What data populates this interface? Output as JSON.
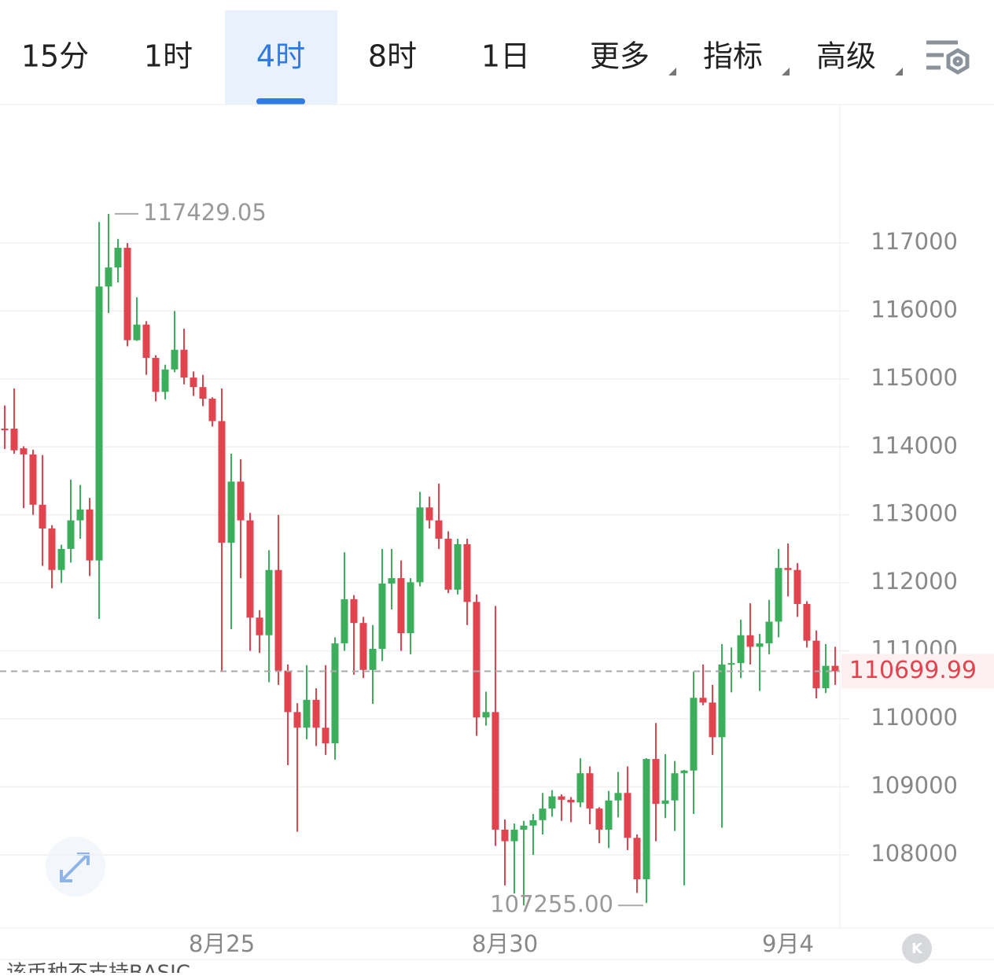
{
  "tabs": [
    "15分",
    "1时",
    "4时",
    "8时",
    "1日",
    "更多",
    "指标",
    "高级"
  ],
  "active_tab": 2,
  "footer": "该币种不支持BASIC",
  "chart_data": {
    "type": "candlestick",
    "categories": [
      null,
      null,
      null,
      null,
      null,
      null,
      null,
      null,
      null,
      null,
      null,
      null,
      null,
      null,
      null,
      null,
      null,
      null,
      null,
      null,
      null,
      null,
      null,
      "8月25",
      null,
      null,
      null,
      null,
      null,
      null,
      null,
      null,
      null,
      null,
      null,
      null,
      null,
      null,
      null,
      null,
      null,
      null,
      null,
      null,
      null,
      null,
      null,
      null,
      null,
      null,
      null,
      null,
      null,
      "8月30",
      null,
      null,
      null,
      null,
      null,
      null,
      null,
      null,
      null,
      null,
      null,
      null,
      null,
      null,
      null,
      null,
      null,
      null,
      null,
      null,
      null,
      null,
      null,
      null,
      null,
      null,
      null,
      null,
      null,
      "9月4",
      null,
      null,
      null,
      null,
      null
    ],
    "open": [
      114270,
      114270,
      113980,
      113890,
      113150,
      112800,
      112190,
      112500,
      112920,
      113080,
      112330,
      116360,
      116640,
      116930,
      115570,
      115800,
      115310,
      114810,
      115140,
      115430,
      115020,
      114880,
      114710,
      114380,
      112590,
      113490,
      112920,
      111490,
      111230,
      112190,
      110710,
      110100,
      109870,
      110280,
      109870,
      109640,
      111110,
      111760,
      111410,
      110720,
      111030,
      111990,
      112070,
      111260,
      112010,
      113110,
      112920,
      112650,
      111900,
      112570,
      111720,
      110020,
      110100,
      108370,
      108200,
      108370,
      108430,
      108510,
      108680,
      108860,
      108810,
      108770,
      109200,
      108680,
      108370,
      108800,
      108910,
      108250,
      107640,
      109410,
      108750,
      108800,
      109200,
      109240,
      110310,
      110240,
      109730,
      110800,
      110820,
      111230,
      111060,
      111110,
      111430,
      112220,
      112190,
      111690,
      111150,
      110450,
      110780
    ],
    "high": [
      114610,
      114860,
      114010,
      113960,
      113880,
      112850,
      112560,
      113520,
      113440,
      113250,
      117310,
      117429.05,
      117060,
      117000,
      116200,
      115850,
      115350,
      115210,
      116000,
      115740,
      115110,
      115060,
      114730,
      114860,
      113900,
      113820,
      113030,
      111600,
      112480,
      113000,
      110800,
      110230,
      110790,
      110450,
      110790,
      111200,
      112450,
      111820,
      111500,
      111380,
      112500,
      112500,
      112330,
      112070,
      113340,
      113270,
      113460,
      112760,
      112650,
      112650,
      111830,
      110400,
      111660,
      108520,
      108460,
      108500,
      108600,
      108910,
      108950,
      108890,
      108850,
      109420,
      109300,
      108700,
      108940,
      109220,
      109300,
      108300,
      109420,
      109940,
      109480,
      109380,
      109250,
      110690,
      110800,
      110500,
      111100,
      111050,
      111460,
      111700,
      111250,
      111750,
      112500,
      112580,
      112290,
      111730,
      111300,
      111100,
      111060
    ],
    "low": [
      113970,
      113900,
      113100,
      113000,
      112250,
      111920,
      112000,
      112300,
      112650,
      112100,
      111470,
      115970,
      116420,
      115480,
      115560,
      115060,
      114670,
      114700,
      115100,
      114920,
      114750,
      114600,
      114300,
      110700,
      111320,
      112070,
      111000,
      110970,
      110540,
      110500,
      109320,
      108340,
      109700,
      109600,
      109470,
      109400,
      111000,
      110650,
      110600,
      110220,
      110850,
      111610,
      111000,
      110950,
      111950,
      112800,
      112500,
      111850,
      111830,
      111380,
      109750,
      109900,
      108130,
      107550,
      107430,
      107255,
      108000,
      108300,
      108560,
      108500,
      108480,
      108700,
      108450,
      108170,
      108100,
      108550,
      108070,
      107440,
      107290,
      108200,
      108540,
      108350,
      107550,
      108600,
      110200,
      109470,
      108400,
      110390,
      110600,
      110800,
      110410,
      110950,
      111200,
      111800,
      111500,
      111050,
      110300,
      110380,
      110500
    ],
    "close": [
      114250,
      113950,
      113890,
      113150,
      112800,
      112190,
      112500,
      112920,
      113080,
      112330,
      116360,
      116640,
      116930,
      115570,
      115800,
      115310,
      114810,
      115140,
      115430,
      115020,
      114880,
      114710,
      114380,
      112590,
      113490,
      112920,
      111490,
      111230,
      112190,
      110710,
      110100,
      109870,
      110280,
      109870,
      109640,
      111110,
      111760,
      111410,
      110720,
      111030,
      111990,
      112070,
      111260,
      112010,
      113110,
      112920,
      112650,
      111900,
      112570,
      111720,
      110020,
      110100,
      108370,
      108200,
      108370,
      108430,
      108510,
      108680,
      108860,
      108810,
      108770,
      109200,
      108680,
      108370,
      108800,
      108910,
      108250,
      107640,
      109410,
      108750,
      108800,
      109200,
      109240,
      110310,
      110240,
      109730,
      110800,
      110820,
      111230,
      111060,
      111110,
      111430,
      112220,
      112190,
      111690,
      111150,
      110450,
      110780,
      110699.99
    ],
    "up_color": "#3dae5b",
    "down_color": "#e0454f",
    "ylim": [
      106923,
      119036
    ],
    "yticks": [
      108000,
      109000,
      110000,
      111000,
      112000,
      113000,
      114000,
      115000,
      116000,
      117000
    ],
    "grid": true,
    "max_label": "117429.05",
    "min_label": "107255.00",
    "current_price_label": "110699.99"
  }
}
